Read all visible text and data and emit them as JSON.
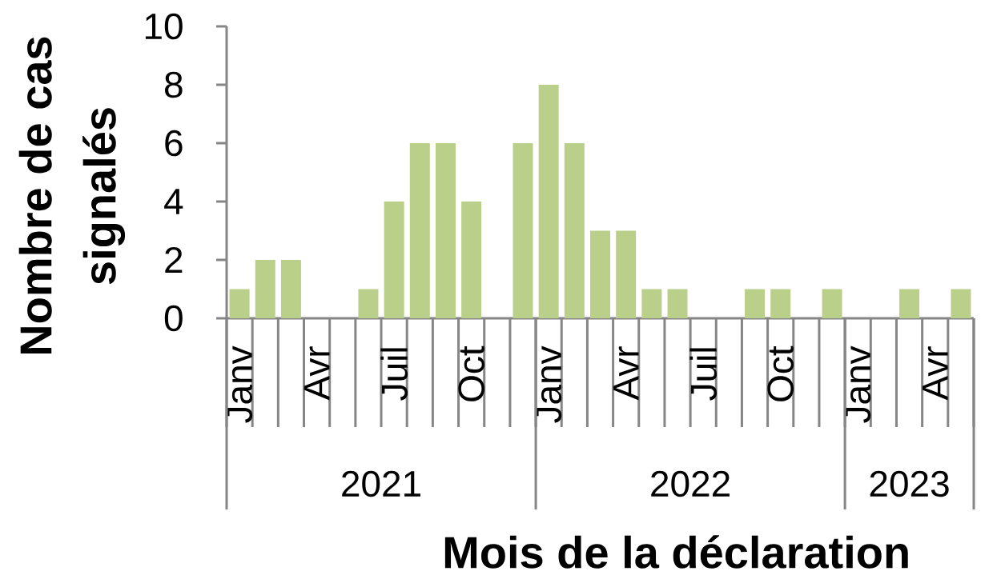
{
  "chart_data": {
    "type": "bar",
    "xlabel": "Mois de la déclaration",
    "ylabel": "Nombre de cas signalés",
    "categories": [
      "Janv",
      null,
      null,
      "Avr",
      null,
      null,
      "Juil",
      null,
      null,
      "Oct",
      null,
      null,
      "Janv",
      null,
      null,
      "Avr",
      null,
      null,
      "Juil",
      null,
      null,
      "Oct",
      null,
      null,
      "Janv",
      null,
      null,
      "Avr",
      null
    ],
    "values": [
      1,
      2,
      2,
      null,
      null,
      1,
      4,
      6,
      6,
      4,
      null,
      6,
      8,
      6,
      3,
      3,
      1,
      1,
      null,
      null,
      1,
      1,
      null,
      1,
      null,
      null,
      1,
      null,
      1
    ],
    "color": "#bad08a",
    "ylim": [
      0,
      10
    ],
    "yticks": [
      0,
      2,
      4,
      6,
      8,
      10
    ],
    "annotations": [
      "2021",
      "2022",
      "2023"
    ]
  }
}
